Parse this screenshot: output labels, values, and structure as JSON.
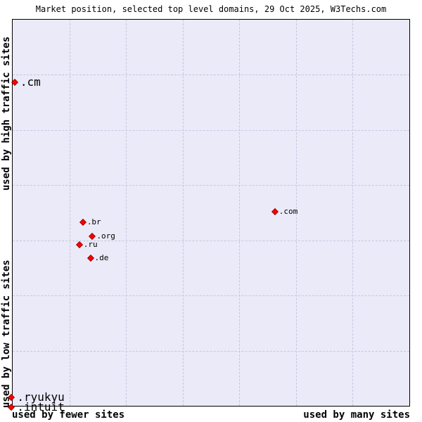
{
  "title": "Market position, selected top level domains, 29 Oct 2025, W3Techs.com",
  "colors": {
    "page_background": "#ffffff",
    "plot_background": "#eaeaf8",
    "plot_border": "#000000",
    "grid_line": "#c6c6e2",
    "point_fill": "#ff0000",
    "point_border": "#990000",
    "text": "#000000"
  },
  "chart_data": {
    "type": "scatter",
    "title": "Market position, selected top level domains, 29 Oct 2025, W3Techs.com",
    "x_axis": {
      "low_label": "used by fewer sites",
      "high_label": "used by many sites",
      "scale": "qualitative"
    },
    "y_axis": {
      "low_label": "used by low traffic sites",
      "high_label": "used by high traffic sites",
      "scale": "qualitative"
    },
    "grid": {
      "columns": 7,
      "rows": 7,
      "line_style": "dashed"
    },
    "points": [
      {
        "label": ".cm",
        "x_pct": 0.5,
        "y_pct": 16.3,
        "emphasis": "large"
      },
      {
        "label": ".com",
        "x_pct": 66.1,
        "y_pct": 49.7,
        "emphasis": "small"
      },
      {
        "label": ".br",
        "x_pct": 17.7,
        "y_pct": 52.5,
        "emphasis": "small"
      },
      {
        "label": ".org",
        "x_pct": 20.1,
        "y_pct": 56.1,
        "emphasis": "small"
      },
      {
        "label": ".ru",
        "x_pct": 16.8,
        "y_pct": 58.3,
        "emphasis": "small"
      },
      {
        "label": ".de",
        "x_pct": 19.6,
        "y_pct": 61.7,
        "emphasis": "small"
      },
      {
        "label": ".ryukyu",
        "x_pct": -0.3,
        "y_pct": 97.8,
        "emphasis": "large"
      },
      {
        "label": ".intuit",
        "x_pct": -0.3,
        "y_pct": 100.4,
        "emphasis": "large"
      }
    ]
  }
}
